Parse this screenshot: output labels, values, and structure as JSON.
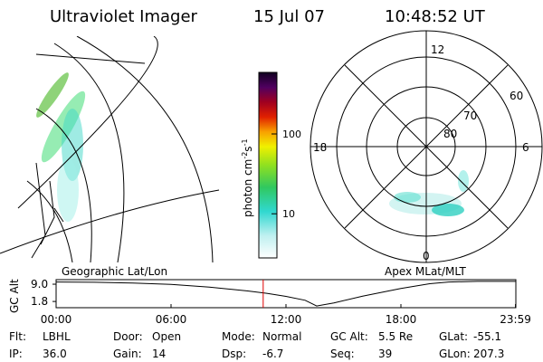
{
  "header": {
    "title": "Ultraviolet Imager",
    "date": "15 Jul 07",
    "time": "10:48:52 UT"
  },
  "colorbar": {
    "unit": [
      "photon cm",
      "-2",
      "s",
      "-1"
    ],
    "scale": "log",
    "lim": [
      2.8,
      590
    ],
    "ticks": [
      10,
      100
    ]
  },
  "polar_plot": {
    "mlt_labels": [
      "12",
      "18",
      "6",
      "0"
    ],
    "lat_labels": [
      "60",
      "70",
      "80"
    ]
  },
  "panel_labels": {
    "left": "Geographic Lat/Lon",
    "right": "Apex MLat/MLT"
  },
  "orbit_strip": {
    "ylabel": "GC Alt",
    "ylim": [
      -0.8,
      10.9
    ],
    "yticks": [
      {
        "value": 9.0,
        "label": "9.0"
      },
      {
        "value": 1.8,
        "label": "1.8"
      }
    ],
    "xlim": [
      0,
      24
    ],
    "xticks": [
      {
        "value": 0,
        "label": "00:00"
      },
      {
        "value": 6,
        "label": "06:00"
      },
      {
        "value": 12,
        "label": "12:00"
      },
      {
        "value": 18,
        "label": "18:00"
      },
      {
        "value": 23.98,
        "label": "23:59"
      }
    ],
    "x": [
      0,
      2,
      4,
      6,
      8,
      10,
      11,
      12,
      13,
      13.6,
      14.5,
      16,
      18,
      19.5,
      20.5,
      22,
      24
    ],
    "values": [
      9.9,
      9.8,
      9.5,
      8.9,
      7.8,
      6.2,
      5.2,
      3.9,
      2.3,
      -0.1,
      1.2,
      4.0,
      7.2,
      9.2,
      9.9,
      10.2,
      10.2
    ],
    "marker_x": 10.81
  },
  "footer": {
    "rows": [
      [
        [
          "Flt:",
          "LBHL"
        ],
        [
          "Door:",
          "Open"
        ],
        [
          "Mode:",
          "Normal"
        ],
        [
          "GC Alt:",
          "5.5 Re"
        ],
        [
          "GLat:",
          "-55.1"
        ]
      ],
      [
        [
          "IP:",
          "36.0"
        ],
        [
          "Gain:",
          "14"
        ],
        [
          "Dsp:",
          "-6.7"
        ],
        [
          "Seq:",
          "39"
        ],
        [
          "GLon:",
          "207.3"
        ]
      ]
    ]
  }
}
